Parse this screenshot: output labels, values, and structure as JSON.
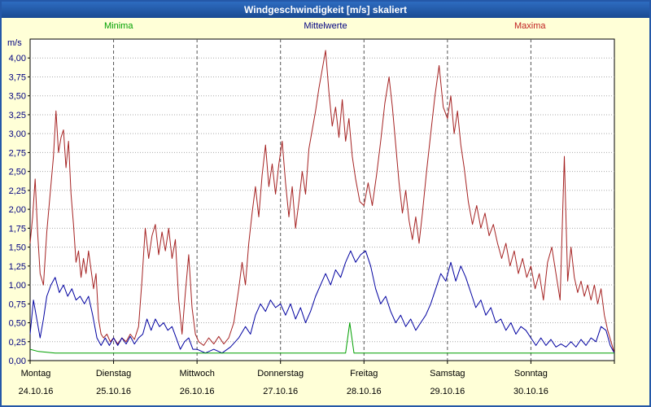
{
  "window": {
    "title": "Windgeschwindigkeit [m/s] skaliert"
  },
  "colors": {
    "titlebar": "#1A55A8",
    "window_border": "#2458A8",
    "background": "#FFFFD7",
    "axis_label": "#000080",
    "grid_horizontal": "#AAAAAA",
    "grid_vertical": "#555555"
  },
  "legend": [
    {
      "label": "Minima",
      "color": "#00A000"
    },
    {
      "label": "Mittelwerte",
      "color": "#000080"
    },
    {
      "label": "Maxima",
      "color": "#C02020"
    }
  ],
  "chart_data": {
    "type": "line",
    "title": "Windgeschwindigkeit [m/s] skaliert",
    "y_unit_label": "m/s",
    "ylabel": "m/s",
    "xlabel": "",
    "ylim": [
      0,
      4.25
    ],
    "ytick_step": 0.25,
    "ytick_max": 4.0,
    "x_range": [
      0,
      7
    ],
    "grid": {
      "horizontal": "dotted",
      "vertical": "dashed"
    },
    "legend_position": "top",
    "x_days": [
      {
        "day": "Montag",
        "date": "24.10.16"
      },
      {
        "day": "Dienstag",
        "date": "25.10.16"
      },
      {
        "day": "Mittwoch",
        "date": "26.10.16"
      },
      {
        "day": "Donnerstag",
        "date": "27.10.16"
      },
      {
        "day": "Freitag",
        "date": "28.10.16"
      },
      {
        "day": "Samstag",
        "date": "29.10.16"
      },
      {
        "day": "Sonntag",
        "date": "30.10.16"
      }
    ],
    "series": [
      {
        "name": "Maxima",
        "color": "#A52222",
        "points": [
          [
            0.0,
            1.55
          ],
          [
            0.03,
            1.9
          ],
          [
            0.06,
            2.4
          ],
          [
            0.09,
            1.7
          ],
          [
            0.12,
            1.15
          ],
          [
            0.16,
            1.0
          ],
          [
            0.2,
            1.7
          ],
          [
            0.24,
            2.2
          ],
          [
            0.28,
            2.7
          ],
          [
            0.31,
            3.3
          ],
          [
            0.34,
            2.75
          ],
          [
            0.37,
            2.95
          ],
          [
            0.4,
            3.05
          ],
          [
            0.43,
            2.55
          ],
          [
            0.46,
            2.9
          ],
          [
            0.49,
            2.2
          ],
          [
            0.52,
            1.8
          ],
          [
            0.55,
            1.3
          ],
          [
            0.58,
            1.45
          ],
          [
            0.61,
            1.1
          ],
          [
            0.64,
            1.35
          ],
          [
            0.67,
            1.15
          ],
          [
            0.7,
            1.45
          ],
          [
            0.73,
            1.2
          ],
          [
            0.76,
            0.95
          ],
          [
            0.79,
            1.15
          ],
          [
            0.82,
            0.55
          ],
          [
            0.85,
            0.35
          ],
          [
            0.88,
            0.3
          ],
          [
            0.92,
            0.35
          ],
          [
            0.96,
            0.25
          ],
          [
            1.0,
            0.3
          ],
          [
            1.05,
            0.22
          ],
          [
            1.1,
            0.3
          ],
          [
            1.15,
            0.25
          ],
          [
            1.2,
            0.35
          ],
          [
            1.25,
            0.28
          ],
          [
            1.3,
            0.45
          ],
          [
            1.34,
            1.05
          ],
          [
            1.38,
            1.75
          ],
          [
            1.42,
            1.35
          ],
          [
            1.46,
            1.65
          ],
          [
            1.5,
            1.8
          ],
          [
            1.54,
            1.4
          ],
          [
            1.58,
            1.7
          ],
          [
            1.62,
            1.45
          ],
          [
            1.66,
            1.75
          ],
          [
            1.7,
            1.35
          ],
          [
            1.74,
            1.6
          ],
          [
            1.78,
            0.8
          ],
          [
            1.82,
            0.35
          ],
          [
            1.86,
            0.9
          ],
          [
            1.9,
            1.4
          ],
          [
            1.94,
            0.7
          ],
          [
            1.98,
            0.35
          ],
          [
            2.02,
            0.25
          ],
          [
            2.08,
            0.2
          ],
          [
            2.14,
            0.3
          ],
          [
            2.2,
            0.22
          ],
          [
            2.26,
            0.32
          ],
          [
            2.32,
            0.22
          ],
          [
            2.38,
            0.3
          ],
          [
            2.44,
            0.5
          ],
          [
            2.5,
            0.95
          ],
          [
            2.54,
            1.3
          ],
          [
            2.58,
            1.0
          ],
          [
            2.62,
            1.55
          ],
          [
            2.66,
            1.95
          ],
          [
            2.7,
            2.3
          ],
          [
            2.74,
            1.9
          ],
          [
            2.78,
            2.45
          ],
          [
            2.82,
            2.85
          ],
          [
            2.86,
            2.3
          ],
          [
            2.9,
            2.6
          ],
          [
            2.94,
            2.2
          ],
          [
            2.98,
            2.6
          ],
          [
            3.02,
            2.9
          ],
          [
            3.06,
            2.35
          ],
          [
            3.1,
            1.9
          ],
          [
            3.14,
            2.3
          ],
          [
            3.18,
            1.75
          ],
          [
            3.22,
            2.1
          ],
          [
            3.26,
            2.5
          ],
          [
            3.3,
            2.2
          ],
          [
            3.34,
            2.8
          ],
          [
            3.38,
            3.05
          ],
          [
            3.42,
            3.3
          ],
          [
            3.46,
            3.6
          ],
          [
            3.5,
            3.85
          ],
          [
            3.54,
            4.1
          ],
          [
            3.58,
            3.55
          ],
          [
            3.62,
            3.1
          ],
          [
            3.66,
            3.35
          ],
          [
            3.7,
            2.95
          ],
          [
            3.74,
            3.45
          ],
          [
            3.78,
            2.9
          ],
          [
            3.82,
            3.2
          ],
          [
            3.86,
            2.7
          ],
          [
            3.9,
            2.4
          ],
          [
            3.95,
            2.1
          ],
          [
            4.0,
            2.05
          ],
          [
            4.05,
            2.35
          ],
          [
            4.1,
            2.05
          ],
          [
            4.15,
            2.45
          ],
          [
            4.2,
            2.9
          ],
          [
            4.25,
            3.4
          ],
          [
            4.3,
            3.75
          ],
          [
            4.34,
            3.35
          ],
          [
            4.38,
            2.85
          ],
          [
            4.42,
            2.35
          ],
          [
            4.46,
            1.95
          ],
          [
            4.5,
            2.25
          ],
          [
            4.54,
            1.85
          ],
          [
            4.58,
            1.6
          ],
          [
            4.62,
            1.9
          ],
          [
            4.66,
            1.55
          ],
          [
            4.7,
            1.95
          ],
          [
            4.75,
            2.5
          ],
          [
            4.8,
            3.0
          ],
          [
            4.85,
            3.5
          ],
          [
            4.9,
            3.9
          ],
          [
            4.95,
            3.35
          ],
          [
            5.0,
            3.2
          ],
          [
            5.04,
            3.5
          ],
          [
            5.08,
            3.0
          ],
          [
            5.12,
            3.3
          ],
          [
            5.16,
            2.85
          ],
          [
            5.2,
            2.55
          ],
          [
            5.25,
            2.1
          ],
          [
            5.3,
            1.8
          ],
          [
            5.35,
            2.05
          ],
          [
            5.4,
            1.75
          ],
          [
            5.45,
            1.95
          ],
          [
            5.5,
            1.65
          ],
          [
            5.55,
            1.8
          ],
          [
            5.6,
            1.55
          ],
          [
            5.65,
            1.35
          ],
          [
            5.7,
            1.55
          ],
          [
            5.75,
            1.25
          ],
          [
            5.8,
            1.45
          ],
          [
            5.85,
            1.15
          ],
          [
            5.9,
            1.35
          ],
          [
            5.95,
            1.1
          ],
          [
            6.0,
            1.25
          ],
          [
            6.05,
            0.95
          ],
          [
            6.1,
            1.15
          ],
          [
            6.15,
            0.8
          ],
          [
            6.2,
            1.3
          ],
          [
            6.25,
            1.5
          ],
          [
            6.3,
            1.15
          ],
          [
            6.35,
            0.8
          ],
          [
            6.4,
            2.7
          ],
          [
            6.44,
            1.05
          ],
          [
            6.48,
            1.5
          ],
          [
            6.52,
            1.1
          ],
          [
            6.56,
            0.9
          ],
          [
            6.6,
            1.05
          ],
          [
            6.64,
            0.85
          ],
          [
            6.68,
            1.0
          ],
          [
            6.72,
            0.8
          ],
          [
            6.76,
            1.0
          ],
          [
            6.8,
            0.75
          ],
          [
            6.84,
            0.95
          ],
          [
            6.88,
            0.6
          ],
          [
            6.92,
            0.4
          ],
          [
            6.96,
            0.25
          ],
          [
            7.0,
            0.1
          ]
        ]
      },
      {
        "name": "Mittelwerte",
        "color": "#0000A0",
        "points": [
          [
            0.0,
            0.35
          ],
          [
            0.04,
            0.8
          ],
          [
            0.08,
            0.55
          ],
          [
            0.12,
            0.3
          ],
          [
            0.16,
            0.55
          ],
          [
            0.2,
            0.85
          ],
          [
            0.25,
            1.0
          ],
          [
            0.3,
            1.1
          ],
          [
            0.35,
            0.9
          ],
          [
            0.4,
            1.0
          ],
          [
            0.45,
            0.85
          ],
          [
            0.5,
            0.95
          ],
          [
            0.55,
            0.8
          ],
          [
            0.6,
            0.85
          ],
          [
            0.65,
            0.75
          ],
          [
            0.7,
            0.85
          ],
          [
            0.75,
            0.6
          ],
          [
            0.8,
            0.3
          ],
          [
            0.85,
            0.2
          ],
          [
            0.9,
            0.3
          ],
          [
            0.95,
            0.2
          ],
          [
            1.0,
            0.3
          ],
          [
            1.05,
            0.2
          ],
          [
            1.1,
            0.3
          ],
          [
            1.15,
            0.22
          ],
          [
            1.2,
            0.32
          ],
          [
            1.25,
            0.22
          ],
          [
            1.3,
            0.3
          ],
          [
            1.35,
            0.35
          ],
          [
            1.4,
            0.55
          ],
          [
            1.45,
            0.4
          ],
          [
            1.5,
            0.55
          ],
          [
            1.55,
            0.45
          ],
          [
            1.6,
            0.5
          ],
          [
            1.65,
            0.4
          ],
          [
            1.7,
            0.45
          ],
          [
            1.75,
            0.3
          ],
          [
            1.8,
            0.15
          ],
          [
            1.85,
            0.25
          ],
          [
            1.9,
            0.3
          ],
          [
            1.95,
            0.15
          ],
          [
            2.0,
            0.15
          ],
          [
            2.1,
            0.1
          ],
          [
            2.2,
            0.15
          ],
          [
            2.3,
            0.1
          ],
          [
            2.4,
            0.18
          ],
          [
            2.5,
            0.3
          ],
          [
            2.58,
            0.45
          ],
          [
            2.64,
            0.35
          ],
          [
            2.7,
            0.6
          ],
          [
            2.76,
            0.75
          ],
          [
            2.82,
            0.65
          ],
          [
            2.88,
            0.8
          ],
          [
            2.94,
            0.7
          ],
          [
            3.0,
            0.75
          ],
          [
            3.06,
            0.6
          ],
          [
            3.12,
            0.75
          ],
          [
            3.18,
            0.55
          ],
          [
            3.24,
            0.7
          ],
          [
            3.3,
            0.5
          ],
          [
            3.36,
            0.65
          ],
          [
            3.42,
            0.85
          ],
          [
            3.48,
            1.0
          ],
          [
            3.54,
            1.15
          ],
          [
            3.6,
            1.0
          ],
          [
            3.66,
            1.2
          ],
          [
            3.72,
            1.1
          ],
          [
            3.78,
            1.3
          ],
          [
            3.84,
            1.45
          ],
          [
            3.9,
            1.3
          ],
          [
            3.96,
            1.4
          ],
          [
            4.02,
            1.45
          ],
          [
            4.08,
            1.25
          ],
          [
            4.14,
            0.95
          ],
          [
            4.2,
            0.75
          ],
          [
            4.26,
            0.85
          ],
          [
            4.32,
            0.65
          ],
          [
            4.38,
            0.5
          ],
          [
            4.44,
            0.6
          ],
          [
            4.5,
            0.45
          ],
          [
            4.56,
            0.55
          ],
          [
            4.62,
            0.4
          ],
          [
            4.68,
            0.5
          ],
          [
            4.74,
            0.6
          ],
          [
            4.8,
            0.75
          ],
          [
            4.86,
            0.95
          ],
          [
            4.92,
            1.15
          ],
          [
            4.98,
            1.05
          ],
          [
            5.04,
            1.3
          ],
          [
            5.1,
            1.05
          ],
          [
            5.16,
            1.25
          ],
          [
            5.22,
            1.1
          ],
          [
            5.28,
            0.9
          ],
          [
            5.34,
            0.7
          ],
          [
            5.4,
            0.8
          ],
          [
            5.46,
            0.6
          ],
          [
            5.52,
            0.7
          ],
          [
            5.58,
            0.5
          ],
          [
            5.64,
            0.55
          ],
          [
            5.7,
            0.4
          ],
          [
            5.76,
            0.5
          ],
          [
            5.82,
            0.35
          ],
          [
            5.88,
            0.45
          ],
          [
            5.94,
            0.4
          ],
          [
            6.0,
            0.3
          ],
          [
            6.06,
            0.2
          ],
          [
            6.12,
            0.3
          ],
          [
            6.18,
            0.2
          ],
          [
            6.24,
            0.28
          ],
          [
            6.3,
            0.18
          ],
          [
            6.36,
            0.22
          ],
          [
            6.42,
            0.18
          ],
          [
            6.48,
            0.25
          ],
          [
            6.54,
            0.18
          ],
          [
            6.6,
            0.28
          ],
          [
            6.66,
            0.2
          ],
          [
            6.72,
            0.3
          ],
          [
            6.78,
            0.25
          ],
          [
            6.84,
            0.45
          ],
          [
            6.9,
            0.4
          ],
          [
            6.95,
            0.2
          ],
          [
            7.0,
            0.1
          ]
        ]
      },
      {
        "name": "Minima",
        "color": "#00A000",
        "points": [
          [
            0.0,
            0.15
          ],
          [
            0.1,
            0.12
          ],
          [
            0.3,
            0.1
          ],
          [
            0.6,
            0.1
          ],
          [
            1.0,
            0.1
          ],
          [
            1.5,
            0.1
          ],
          [
            2.0,
            0.1
          ],
          [
            2.5,
            0.1
          ],
          [
            3.0,
            0.1
          ],
          [
            3.5,
            0.1
          ],
          [
            3.78,
            0.1
          ],
          [
            3.83,
            0.5
          ],
          [
            3.88,
            0.1
          ],
          [
            4.2,
            0.1
          ],
          [
            4.6,
            0.1
          ],
          [
            5.0,
            0.1
          ],
          [
            5.5,
            0.1
          ],
          [
            6.0,
            0.1
          ],
          [
            6.5,
            0.1
          ],
          [
            7.0,
            0.1
          ]
        ]
      }
    ]
  }
}
